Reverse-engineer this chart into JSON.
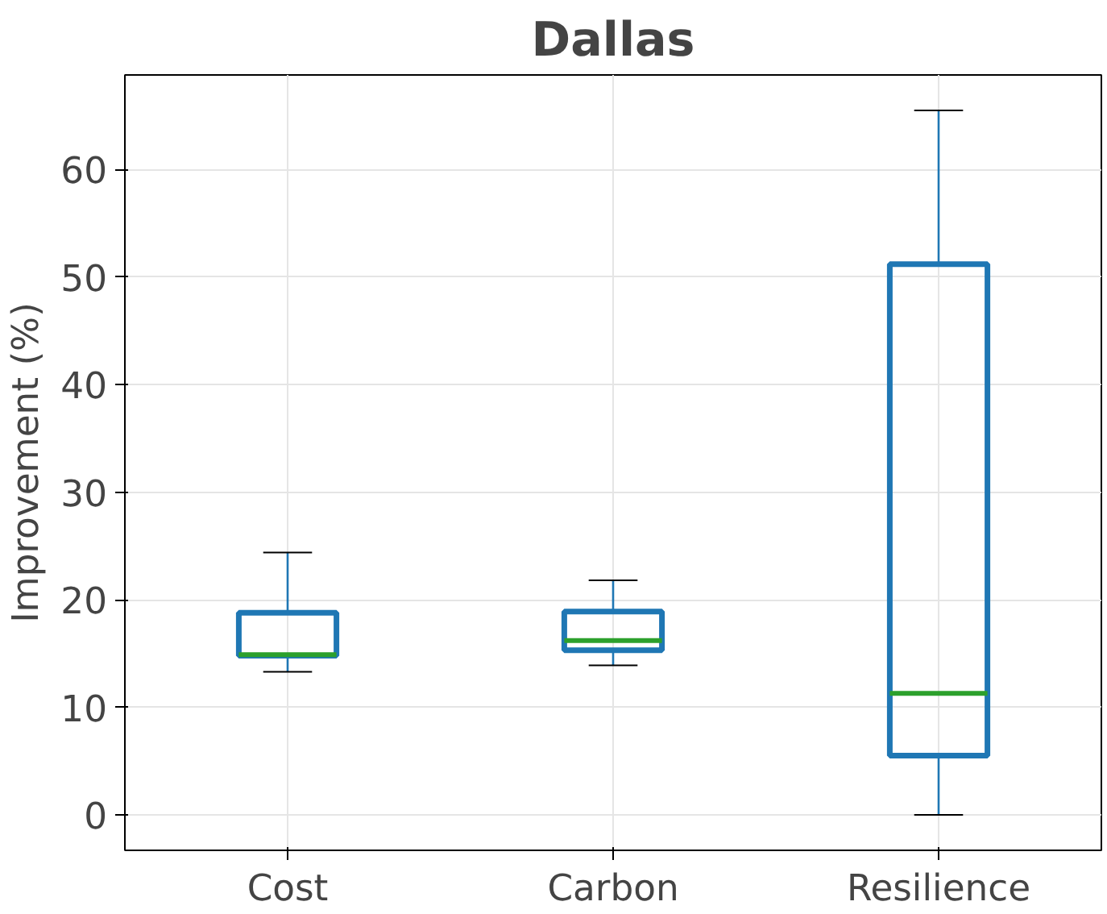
{
  "chart_data": {
    "type": "box",
    "title": "Dallas",
    "ylabel": "Improvement (%)",
    "categories": [
      "Cost",
      "Carbon",
      "Resilience"
    ],
    "series": [
      {
        "color": "#1f77b4",
        "boxes": [
          {
            "low": 13.3,
            "q1": 14.8,
            "median": 14.9,
            "q3": 18.8,
            "high": 24.4
          },
          {
            "low": 13.9,
            "q1": 15.3,
            "median": 16.2,
            "q3": 18.9,
            "high": 21.8
          },
          {
            "low": 0,
            "q1": 5.5,
            "median": 11.3,
            "q3": 51.2,
            "high": 65.5
          }
        ]
      }
    ],
    "ylim": [
      -3.3,
      68.8
    ],
    "yticks": [
      0,
      10,
      20,
      30,
      40,
      50,
      60
    ],
    "grid": true
  }
}
